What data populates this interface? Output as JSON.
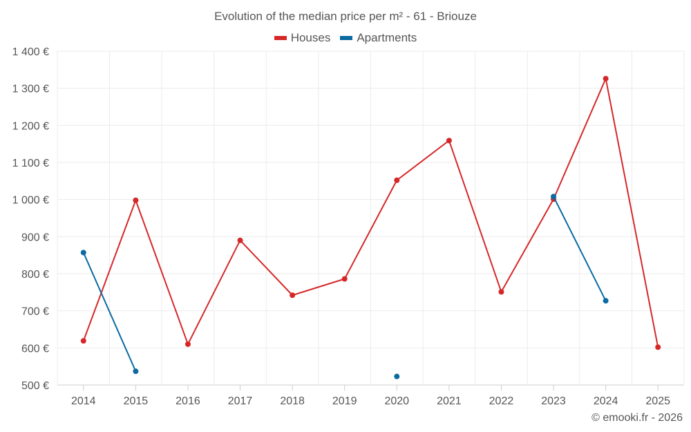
{
  "chart_data": {
    "type": "line",
    "title": "Evolution of the median price per m² - 61 - Briouze",
    "xlabel": "",
    "ylabel": "",
    "categories": [
      "2014",
      "2015",
      "2016",
      "2017",
      "2018",
      "2019",
      "2020",
      "2021",
      "2022",
      "2023",
      "2024",
      "2025"
    ],
    "ylim": [
      500,
      1400
    ],
    "yticks": [
      500,
      600,
      700,
      800,
      900,
      1000,
      1100,
      1200,
      1300,
      1400
    ],
    "ytick_labels": [
      "500 €",
      "600 €",
      "700 €",
      "800 €",
      "900 €",
      "1 000 €",
      "1 100 €",
      "1 200 €",
      "1 300 €",
      "1 400 €"
    ],
    "grid": true,
    "legend_position": "top-center",
    "series": [
      {
        "name": "Houses",
        "color": "#d62728",
        "values": [
          619,
          998,
          610,
          890,
          742,
          786,
          1052,
          1159,
          751,
          1001,
          1326,
          602
        ]
      },
      {
        "name": "Apartments",
        "color": "#0a6aa1",
        "values": [
          857,
          537,
          null,
          null,
          null,
          null,
          523,
          null,
          null,
          1008,
          727,
          null
        ]
      }
    ]
  },
  "credit": "© emooki.fr - 2026"
}
